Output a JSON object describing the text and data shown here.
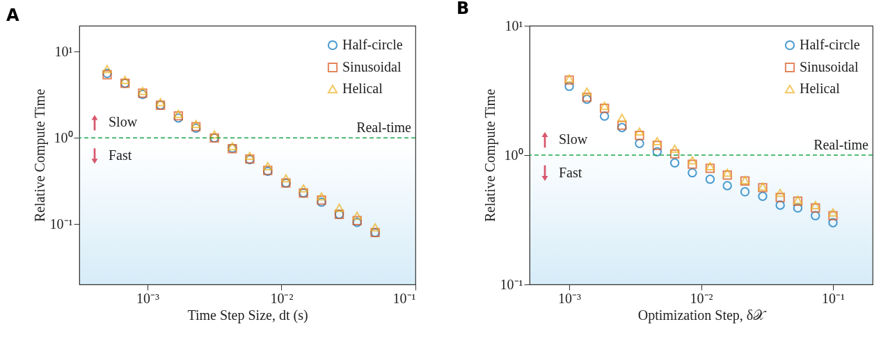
{
  "chart_data": [
    {
      "type": "scatter",
      "title": "A",
      "xlabel": "Time Step Size, dt (s)",
      "ylabel": "Relative Compute Time",
      "log": "xy",
      "legend": "top right",
      "grid": false,
      "x": [
        0.0005,
        0.00068,
        0.00092,
        0.00125,
        0.0017,
        0.0023,
        0.00316,
        0.0043,
        0.0058,
        0.0079,
        0.0108,
        0.0146,
        0.0199,
        0.027,
        0.0367,
        0.05
      ],
      "xlim": [
        0.00031,
        0.1
      ],
      "ylim": [
        0.02,
        20
      ],
      "xticks": [
        {
          "value": 0.001,
          "label": "10⁻³"
        },
        {
          "value": 0.01,
          "label": "10⁻²"
        },
        {
          "value": 0.1,
          "label": "10⁻¹"
        }
      ],
      "yticks": [
        {
          "value": 0.1,
          "label": "10⁻¹"
        },
        {
          "value": 1,
          "label": "10⁰"
        },
        {
          "value": 10,
          "label": "10¹"
        }
      ],
      "series": [
        {
          "name": "Half-circle",
          "color": "#0072bd",
          "marker": "circle",
          "values": [
            5.6,
            4.3,
            3.2,
            2.4,
            1.7,
            1.3,
            1.0,
            0.76,
            0.56,
            0.41,
            0.3,
            0.23,
            0.18,
            0.13,
            0.105,
            0.08
          ]
        },
        {
          "name": "Sinusoidal",
          "color": "#d95319",
          "marker": "square",
          "values": [
            5.4,
            4.3,
            3.3,
            2.4,
            1.8,
            1.35,
            1.0,
            0.75,
            0.57,
            0.42,
            0.3,
            0.23,
            0.19,
            0.13,
            0.11,
            0.08
          ]
        },
        {
          "name": "Helical",
          "color": "#edb120",
          "marker": "triangle",
          "values": [
            6.3,
            4.7,
            3.5,
            2.6,
            1.9,
            1.45,
            1.1,
            0.8,
            0.62,
            0.47,
            0.34,
            0.26,
            0.21,
            0.155,
            0.125,
            0.092
          ]
        }
      ],
      "ref_lines": [
        {
          "axis": "y",
          "value": 1,
          "label": "Real-time",
          "color": "#1aa64a",
          "line_style": "dashed"
        }
      ],
      "annotations": [
        "Slow",
        "Fast"
      ]
    },
    {
      "type": "scatter",
      "title": "B",
      "xlabel": "Optimization Step, δ𝒳",
      "ylabel": "Relative Compute Time",
      "log": "xy",
      "legend": "top right",
      "grid": false,
      "x": [
        0.001,
        0.00136,
        0.00185,
        0.00251,
        0.00341,
        0.00464,
        0.00631,
        0.00858,
        0.0117,
        0.0158,
        0.0215,
        0.0293,
        0.0398,
        0.0541,
        0.0736,
        0.1
      ],
      "xlim": [
        0.0005,
        0.2
      ],
      "ylim": [
        0.1,
        10
      ],
      "xticks": [
        {
          "value": 0.001,
          "label": "10⁻³"
        },
        {
          "value": 0.01,
          "label": "10⁻²"
        },
        {
          "value": 0.1,
          "label": "10⁻¹"
        }
      ],
      "yticks": [
        {
          "value": 0.1,
          "label": "10⁻¹"
        },
        {
          "value": 1,
          "label": "10⁰"
        },
        {
          "value": 10,
          "label": "10¹"
        }
      ],
      "series": [
        {
          "name": "Half-circle",
          "color": "#0072bd",
          "marker": "circle",
          "values": [
            3.4,
            2.7,
            2.0,
            1.63,
            1.23,
            1.06,
            0.87,
            0.73,
            0.65,
            0.58,
            0.52,
            0.48,
            0.41,
            0.39,
            0.34,
            0.3
          ]
        },
        {
          "name": "Sinusoidal",
          "color": "#d95319",
          "marker": "square",
          "values": [
            3.8,
            2.8,
            2.3,
            1.7,
            1.42,
            1.19,
            1.02,
            0.85,
            0.79,
            0.7,
            0.63,
            0.56,
            0.47,
            0.44,
            0.39,
            0.34
          ]
        },
        {
          "name": "Helical",
          "color": "#edb120",
          "marker": "triangle",
          "values": [
            3.9,
            3.1,
            2.4,
            1.94,
            1.52,
            1.28,
            1.12,
            0.91,
            0.82,
            0.73,
            0.64,
            0.57,
            0.51,
            0.45,
            0.41,
            0.36
          ]
        }
      ],
      "ref_lines": [
        {
          "axis": "y",
          "value": 1,
          "label": "Real-time",
          "color": "#1aa64a",
          "line_style": "dashed"
        }
      ],
      "annotations": [
        "Slow",
        "Fast"
      ]
    }
  ]
}
